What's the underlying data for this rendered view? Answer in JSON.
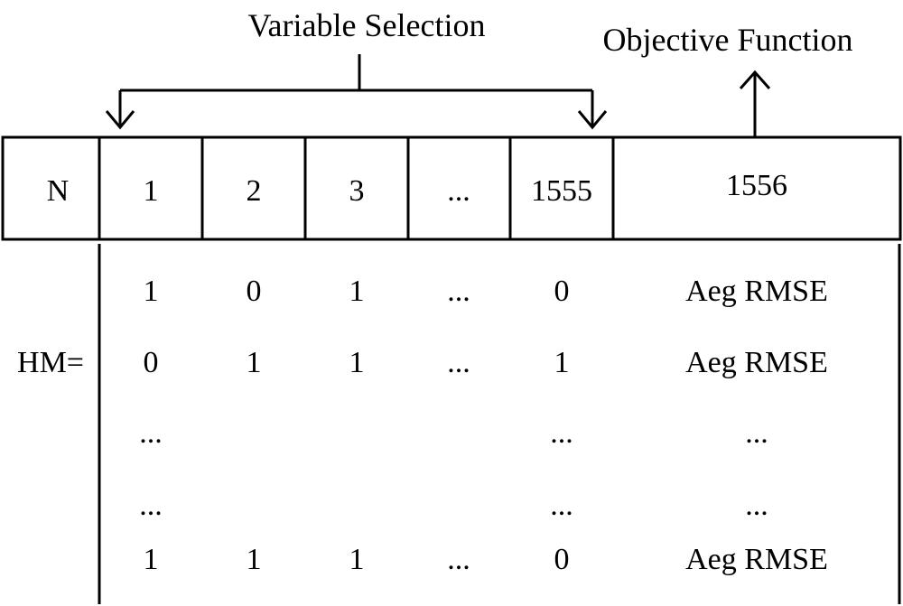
{
  "labels": {
    "variable_selection": "Variable Selection",
    "objective_function": "Objective Function",
    "hm": "HM="
  },
  "header": {
    "n": "N",
    "cells": [
      "1",
      "2",
      "3",
      "...",
      "1555",
      "1556"
    ]
  },
  "rows": [
    [
      "1",
      "0",
      "1",
      "...",
      "0",
      "Aeg RMSE"
    ],
    [
      "0",
      "1",
      "1",
      "...",
      "1",
      "Aeg RMSE"
    ],
    [
      "...",
      "",
      "",
      "",
      "...",
      "..."
    ],
    [
      "...",
      "",
      "",
      "",
      "...",
      "..."
    ],
    [
      "1",
      "1",
      "1",
      "...",
      "0",
      "Aeg RMSE"
    ]
  ]
}
